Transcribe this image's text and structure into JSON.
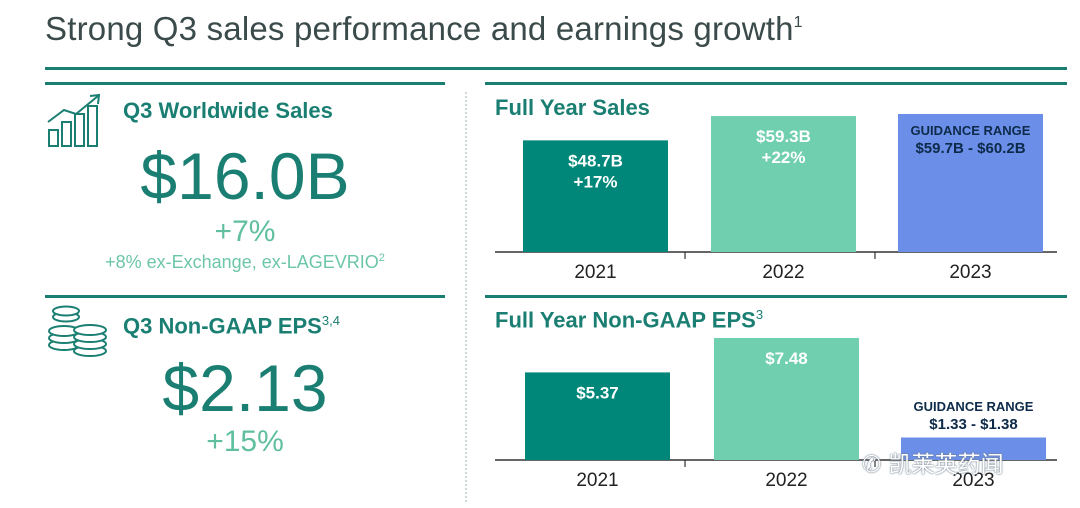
{
  "page": {
    "title": "Strong Q3 sales performance and earnings growth",
    "title_footnote": "1"
  },
  "kpis": {
    "sales": {
      "heading": "Q3 Worldwide Sales",
      "value": "$16.0B",
      "change": "+7%",
      "note": "+8% ex-Exchange, ex-LAGEVRIO",
      "note_footnote": "2",
      "icon": "growth-chart-icon"
    },
    "eps": {
      "heading": "Q3 Non-GAAP EPS",
      "heading_footnote": "3,4",
      "value": "$2.13",
      "change": "+15%",
      "icon": "coin-stack-icon"
    }
  },
  "colors": {
    "dark_teal": "#00877a",
    "light_teal": "#6fcfae",
    "guidance_blue": "#6b8fe8",
    "text_teal": "#1a7f72"
  },
  "chart_data": [
    {
      "type": "bar",
      "title": "Full Year Sales",
      "categories": [
        "2021",
        "2022",
        "2023"
      ],
      "values": [
        48.7,
        59.3,
        60.2
      ],
      "labels": [
        [
          "$48.7B",
          "+17%"
        ],
        [
          "$59.3B",
          "+22%"
        ],
        [
          "GUIDANCE RANGE",
          "$59.7B - $60.2B"
        ]
      ],
      "guidance_range": [
        59.7,
        60.2
      ],
      "unit": "$B",
      "ylim": [
        0,
        60.2
      ]
    },
    {
      "type": "bar",
      "title": "Full Year Non-GAAP EPS",
      "title_footnote": "3",
      "categories": [
        "2021",
        "2022",
        "2023"
      ],
      "values": [
        5.37,
        7.48,
        1.38
      ],
      "labels": [
        [
          "$5.37"
        ],
        [
          "$7.48"
        ],
        [
          "GUIDANCE RANGE",
          "$1.33 - $1.38"
        ]
      ],
      "guidance_range": [
        1.33,
        1.38
      ],
      "unit": "$",
      "ylim": [
        0,
        7.48
      ]
    }
  ],
  "watermark": {
    "text": "凯莱英药闻",
    "icon": "wechat-icon"
  }
}
